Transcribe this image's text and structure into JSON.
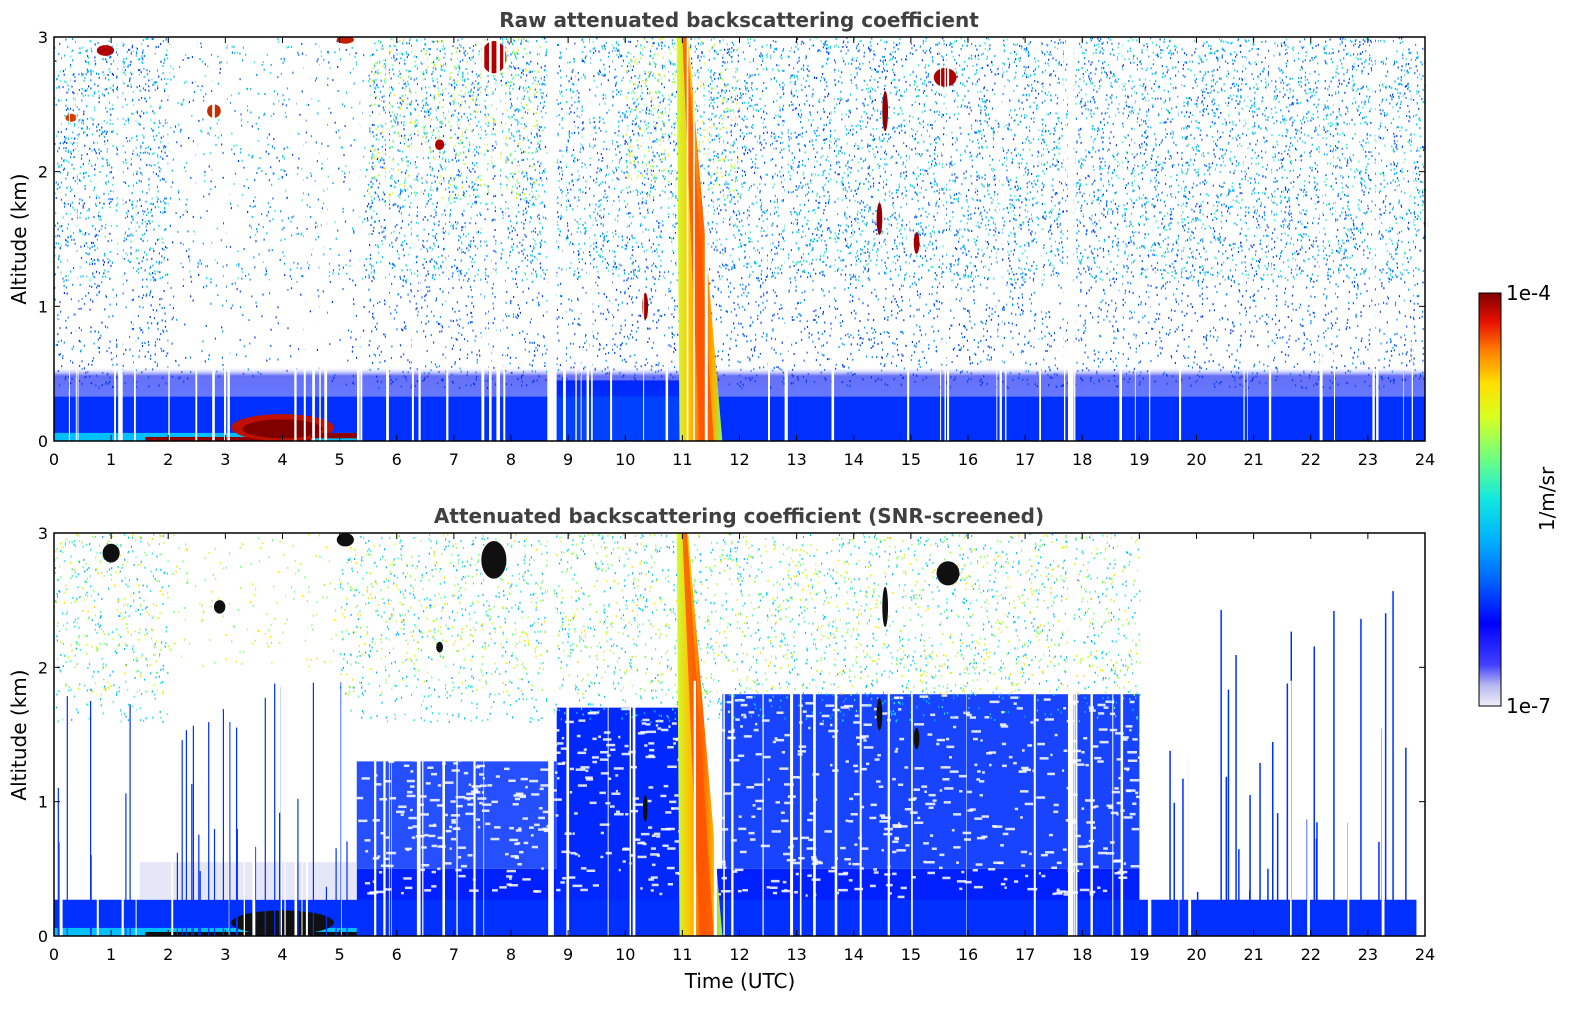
{
  "chart_data": [
    {
      "type": "heatmap",
      "title": "Raw attenuated backscattering coefficient",
      "xlabel": "",
      "ylabel": "Altitude (km)",
      "xlim": [
        0,
        24
      ],
      "ylim": [
        0,
        3
      ],
      "xticks": [
        "0",
        "1",
        "2",
        "3",
        "4",
        "5",
        "6",
        "7",
        "8",
        "9",
        "10",
        "11",
        "12",
        "13",
        "14",
        "15",
        "16",
        "17",
        "18",
        "19",
        "20",
        "21",
        "22",
        "23",
        "24"
      ],
      "yticks": [
        "0",
        "1",
        "2",
        "3"
      ],
      "features": [
        {
          "name": "boundary layer aerosol",
          "x_range": [
            0,
            24
          ],
          "y_range": [
            0,
            0.4
          ],
          "value": "1e-6"
        },
        {
          "name": "near-surface strong layer",
          "x_range": [
            0,
            5.3
          ],
          "y_range": [
            0,
            0.2
          ],
          "value": "1e-4"
        },
        {
          "name": "precipitation / cloud column",
          "x_range": [
            10.9,
            11.6
          ],
          "y_range": [
            0,
            3
          ],
          "value": "5e-5"
        },
        {
          "name": "cloud",
          "x_range": [
            7.4,
            8.0
          ],
          "y_range": [
            2.5,
            3.0
          ],
          "value": "1e-4"
        },
        {
          "name": "cloud",
          "x_range": [
            15.5,
            15.9
          ],
          "y_range": [
            2.6,
            2.8
          ],
          "value": "1e-4"
        },
        {
          "name": "cloud",
          "x_range": [
            14.4,
            14.6
          ],
          "y_range": [
            1.5,
            1.8
          ],
          "value": "1e-4"
        }
      ]
    },
    {
      "type": "heatmap",
      "title": "Attenuated backscattering coefficient (SNR-screened)",
      "xlabel": "Time (UTC)",
      "ylabel": "Altitude (km)",
      "xlim": [
        0,
        24
      ],
      "ylim": [
        0,
        3
      ],
      "xticks": [
        "0",
        "1",
        "2",
        "3",
        "4",
        "5",
        "6",
        "7",
        "8",
        "9",
        "10",
        "11",
        "12",
        "13",
        "14",
        "15",
        "16",
        "17",
        "18",
        "19",
        "20",
        "21",
        "22",
        "23",
        "24"
      ],
      "yticks": [
        "0",
        "1",
        "2",
        "3"
      ],
      "features": [
        {
          "name": "boundary layer aerosol",
          "x_range": [
            0,
            24
          ],
          "y_range": [
            0,
            0.28
          ],
          "value": "1e-6"
        },
        {
          "name": "screened aerosol region",
          "x_range": [
            5.3,
            19.0
          ],
          "y_range": [
            0,
            1.8
          ],
          "value": "1e-6"
        },
        {
          "name": "precipitation / cloud column",
          "x_range": [
            10.9,
            11.6
          ],
          "y_range": [
            0,
            3
          ],
          "value": "5e-5"
        }
      ]
    }
  ],
  "colorbar": {
    "label": "1/m/sr",
    "max_label": "1e-4",
    "min_label": "1e-7",
    "scale": "log",
    "range": [
      1e-07,
      0.0001
    ],
    "colormap": [
      "#e8e8f8",
      "#c8c8f0",
      "#8080ff",
      "#0000ff",
      "#0040ff",
      "#0090ff",
      "#00d0ff",
      "#20f0c0",
      "#80ff60",
      "#d0ff20",
      "#ffe000",
      "#ff9000",
      "#ff3000",
      "#d00000",
      "#800000"
    ]
  }
}
